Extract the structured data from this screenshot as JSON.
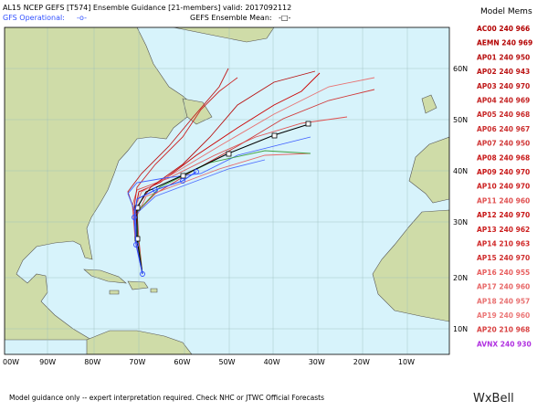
{
  "header": {
    "title": "AL15 NCEP GEFS [T574] Ensemble Guidance [21-members] valid: 2017092112",
    "gfs_label": "GFS Operational:",
    "gfs_symbol": "-o-",
    "mean_label": "GEFS Ensemble Mean:",
    "mean_symbol": "-□-"
  },
  "legend": {
    "title": "Model Mems",
    "members": [
      {
        "text": "AC00 240 966",
        "color": "#b30000"
      },
      {
        "text": "AEMN 240 969",
        "color": "#b30000"
      },
      {
        "text": "AP01 240 950",
        "color": "#b81010"
      },
      {
        "text": "AP02 240 943",
        "color": "#bc1515"
      },
      {
        "text": "AP03 240 970",
        "color": "#c01a1a"
      },
      {
        "text": "AP04 240 969",
        "color": "#c42020"
      },
      {
        "text": "AP05 240 968",
        "color": "#c82828"
      },
      {
        "text": "AP06 240 967",
        "color": "#cc3030"
      },
      {
        "text": "AP07 240 950",
        "color": "#d03838"
      },
      {
        "text": "AP08 240 968",
        "color": "#c81818"
      },
      {
        "text": "AP09 240 970",
        "color": "#c81818"
      },
      {
        "text": "AP10 240 970",
        "color": "#cc2020"
      },
      {
        "text": "AP11 240 960",
        "color": "#e05050"
      },
      {
        "text": "AP12 240 970",
        "color": "#c81818"
      },
      {
        "text": "AP13 240 962",
        "color": "#cc2020"
      },
      {
        "text": "AP14 210 963",
        "color": "#d02828"
      },
      {
        "text": "AP15 240 970",
        "color": "#d03030"
      },
      {
        "text": "AP16 240 955",
        "color": "#e86060"
      },
      {
        "text": "AP17 240 960",
        "color": "#e86868"
      },
      {
        "text": "AP18 240 957",
        "color": "#e87070"
      },
      {
        "text": "AP19 240 960",
        "color": "#ec7878"
      },
      {
        "text": "AP20 210 968",
        "color": "#d84040"
      },
      {
        "text": "AVNX 240 930",
        "color": "#b030e0"
      }
    ]
  },
  "axes": {
    "lon_labels": [
      "00W",
      "90W",
      "80W",
      "70W",
      "60W",
      "50W",
      "40W",
      "30W",
      "20W",
      "10W"
    ],
    "lat_labels": [
      "60N",
      "50N",
      "40N",
      "30N",
      "20N",
      "10N"
    ]
  },
  "footer": {
    "note": "Model guidance only -- expert interpretation required.  Check NHC or JTWC Official Forecasts",
    "brand": "WxBell"
  }
}
